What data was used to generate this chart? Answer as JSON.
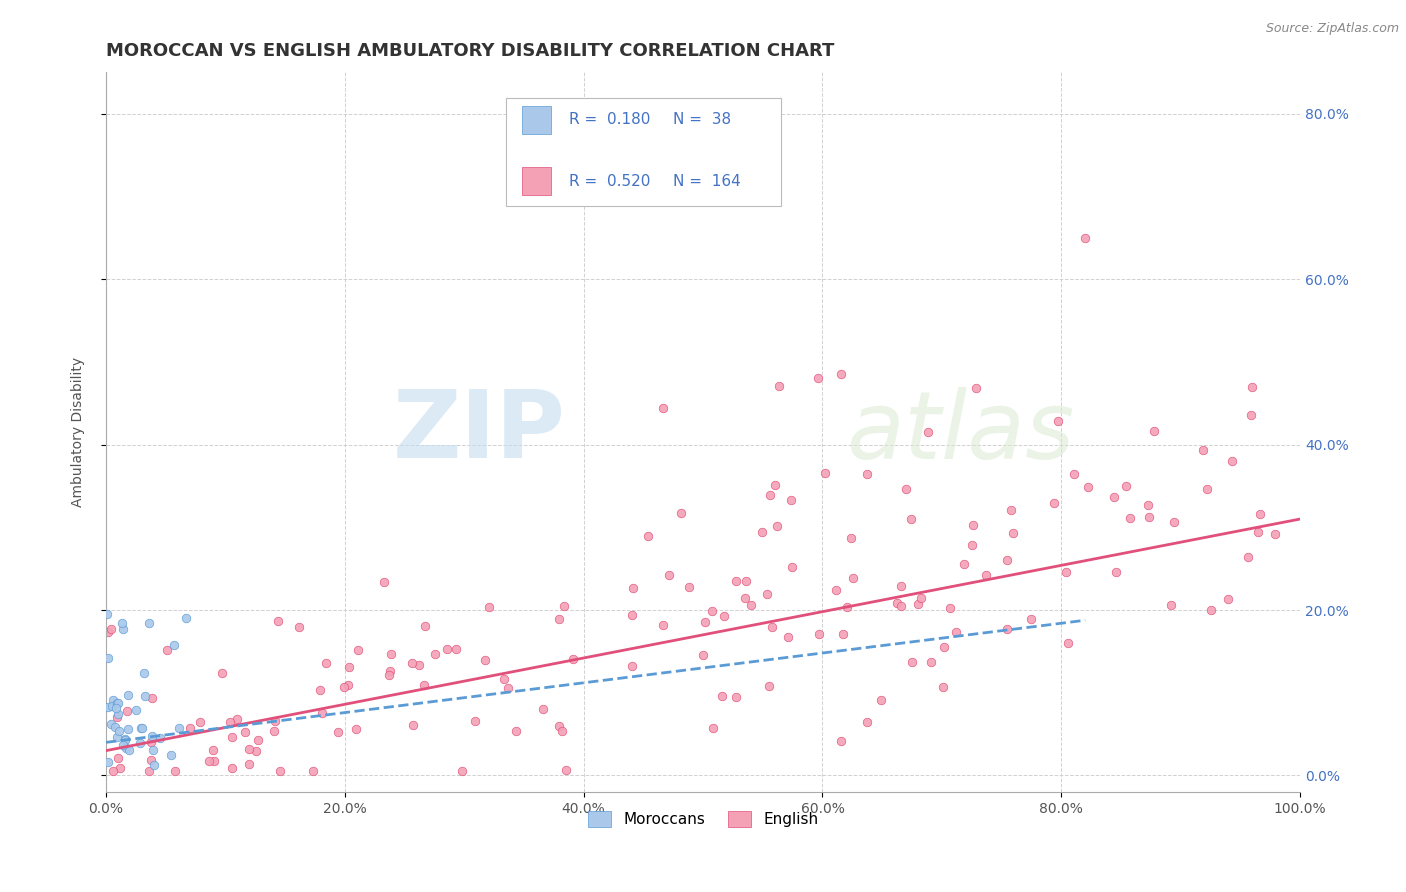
{
  "title": "MOROCCAN VS ENGLISH AMBULATORY DISABILITY CORRELATION CHART",
  "source": "Source: ZipAtlas.com",
  "ylabel": "Ambulatory Disability",
  "xlim": [
    0,
    1.0
  ],
  "ylim": [
    -0.02,
    0.85
  ],
  "x_tick_positions": [
    0.0,
    0.2,
    0.4,
    0.6,
    0.8,
    1.0
  ],
  "x_tick_labels": [
    "0.0%",
    "20.0%",
    "40.0%",
    "60.0%",
    "80.0%",
    "100.0%"
  ],
  "y_tick_positions": [
    0.0,
    0.2,
    0.4,
    0.6,
    0.8
  ],
  "right_y_tick_labels": [
    "0.0%",
    "20.0%",
    "40.0%",
    "60.0%",
    "80.0%"
  ],
  "moroccan_color": "#aac8ea",
  "english_color": "#f4a0b5",
  "moroccan_edge_color": "#5b9bd5",
  "english_edge_color": "#e0507a",
  "moroccan_line_color": "#5b9bd5",
  "english_line_color": "#e0507a",
  "moroccan_R": 0.18,
  "moroccan_N": 38,
  "english_R": 0.52,
  "english_N": 164,
  "legend_label_moroccan": "Moroccans",
  "legend_label_english": "English",
  "watermark_zip": "ZIP",
  "watermark_atlas": "atlas",
  "background_color": "#ffffff",
  "grid_color": "#cccccc",
  "title_fontsize": 13,
  "label_fontsize": 10,
  "tick_fontsize": 10,
  "right_tick_color": "#4472c4",
  "legend_stat_color": "#4472c4",
  "source_color": "#888888"
}
